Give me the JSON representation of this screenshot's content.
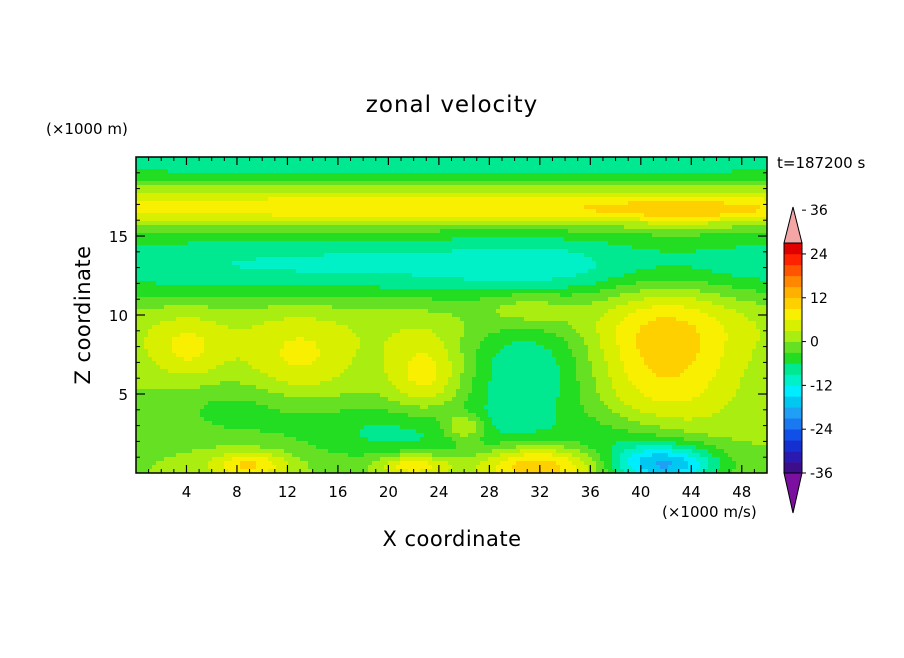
{
  "chart_data": {
    "type": "heatmap",
    "title": "zonal velocity",
    "xlabel": "X coordinate",
    "ylabel": "Z coordinate",
    "x_unit_label": "(×1000 m/s)",
    "y_unit_label": "(×1000 m)",
    "time_label": "t=187200 s",
    "xlim": [
      0,
      50
    ],
    "ylim": [
      0,
      20
    ],
    "xticks": [
      4,
      8,
      12,
      16,
      20,
      24,
      28,
      32,
      36,
      40,
      44,
      48
    ],
    "yticks": [
      5,
      10,
      15
    ],
    "colorbar": {
      "levels": [
        -42,
        -39,
        -36,
        -33,
        -30,
        -27,
        -24,
        -21,
        -18,
        -15,
        -12,
        -9,
        -6,
        -3,
        0,
        3,
        6,
        9,
        12,
        15,
        18,
        21,
        24,
        27,
        30,
        33,
        36,
        39,
        42
      ],
      "colors": [
        "#3d0e8c",
        "#2a1ab0",
        "#1530d0",
        "#1050e8",
        "#1a78f0",
        "#20a0f5",
        "#00c8f0",
        "#00ecff",
        "#00f0c8",
        "#00e890",
        "#22dd22",
        "#66e022",
        "#aaee11",
        "#d8f000",
        "#f8f000",
        "#ffd000",
        "#ffb000",
        "#ff8800",
        "#ff5500",
        "#ff2200",
        "#e00000"
      ],
      "tick_labels": [
        "36",
        "24",
        "12",
        "0",
        "-12",
        "-24",
        "-36"
      ],
      "tick_values": [
        36,
        24,
        12,
        0,
        -12,
        -24,
        -36
      ],
      "under_color": "#7a0fa0",
      "over_color": "#f4a6a6"
    },
    "grid": false,
    "fields": [
      {
        "x": 25,
        "z": 19.5,
        "sx": 40,
        "sz": 0.9,
        "v": -8
      },
      {
        "x": 25,
        "z": 17.9,
        "sx": 40,
        "sz": 0.6,
        "v": 2
      },
      {
        "x": 25,
        "z": 16.7,
        "sx": 40,
        "sz": 0.7,
        "v": 9
      },
      {
        "x": 44,
        "z": 16.6,
        "sx": 5,
        "sz": 0.5,
        "v": 4
      },
      {
        "x": 25,
        "z": 13.2,
        "sx": 40,
        "sz": 1.6,
        "v": -10
      },
      {
        "x": 25,
        "z": 9.5,
        "sx": 40,
        "sz": 1.5,
        "v": 2
      },
      {
        "x": 42,
        "z": 7.6,
        "sx": 4,
        "sz": 3.6,
        "v": 10
      },
      {
        "x": 13,
        "z": 7.2,
        "sx": 3,
        "sz": 1.8,
        "v": 6
      },
      {
        "x": 4,
        "z": 7.8,
        "sx": 2.2,
        "sz": 1.4,
        "v": 6
      },
      {
        "x": 23,
        "z": 6.2,
        "sx": 2.2,
        "sz": 1.8,
        "v": 8
      },
      {
        "x": 31,
        "z": 6.8,
        "sx": 3.8,
        "sz": 3.6,
        "v": -9
      },
      {
        "x": 31,
        "z": 10.5,
        "sx": 2.8,
        "sz": 1,
        "v": 7
      },
      {
        "x": 21,
        "z": 2.6,
        "sx": 6,
        "sz": 1.4,
        "v": -7
      },
      {
        "x": 26,
        "z": 2.9,
        "sx": 1.2,
        "sz": 0.6,
        "v": 9
      },
      {
        "x": 32,
        "z": 0.5,
        "sx": 3.5,
        "sz": 0.9,
        "v": 14
      },
      {
        "x": 9,
        "z": 0.5,
        "sx": 2.2,
        "sz": 0.6,
        "v": 10
      },
      {
        "x": 22,
        "z": 0.5,
        "sx": 2,
        "sz": 0.5,
        "v": 10
      },
      {
        "x": 42,
        "z": 0.5,
        "sx": 3,
        "sz": 0.9,
        "v": -17
      },
      {
        "x": 39,
        "z": 1.8,
        "sx": 4,
        "sz": 1.4,
        "v": -6
      },
      {
        "x": 8,
        "z": 4.0,
        "sx": 4,
        "sz": 1.2,
        "v": -4
      }
    ]
  }
}
